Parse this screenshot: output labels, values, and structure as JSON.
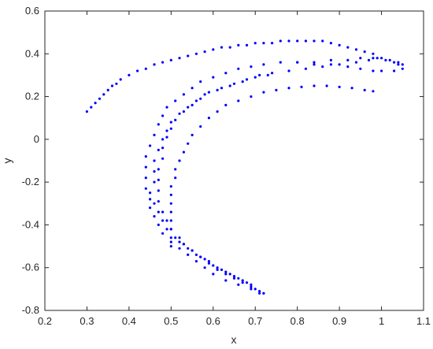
{
  "chart_data": {
    "type": "scatter",
    "title": "",
    "xlabel": "x",
    "ylabel": "y",
    "xlim": [
      0.2,
      1.1
    ],
    "ylim": [
      -0.8,
      0.6
    ],
    "xticks": [
      "0.2",
      "0.3",
      "0.4",
      "0.5",
      "0.6",
      "0.7",
      "0.8",
      "0.9",
      "1",
      "1.1"
    ],
    "yticks": [
      "-0.8",
      "-0.6",
      "-0.4",
      "-0.2",
      "0",
      "0.2",
      "0.4",
      "0.6"
    ],
    "grid": false,
    "legend": "none",
    "marker_color": "#0000ff",
    "series": [
      {
        "points": [
          [
            0.3,
            0.13
          ],
          [
            0.31,
            0.15
          ],
          [
            0.32,
            0.17
          ],
          [
            0.33,
            0.19
          ],
          [
            0.34,
            0.21
          ],
          [
            0.35,
            0.23
          ],
          [
            0.36,
            0.25
          ],
          [
            0.37,
            0.26
          ],
          [
            0.38,
            0.28
          ],
          [
            0.4,
            0.3
          ],
          [
            0.42,
            0.32
          ],
          [
            0.44,
            0.33
          ],
          [
            0.46,
            0.35
          ],
          [
            0.48,
            0.36
          ],
          [
            0.5,
            0.37
          ],
          [
            0.52,
            0.38
          ],
          [
            0.54,
            0.39
          ],
          [
            0.56,
            0.4
          ],
          [
            0.58,
            0.41
          ],
          [
            0.6,
            0.42
          ],
          [
            0.62,
            0.43
          ],
          [
            0.64,
            0.43
          ],
          [
            0.66,
            0.44
          ],
          [
            0.68,
            0.44
          ],
          [
            0.7,
            0.45
          ],
          [
            0.72,
            0.45
          ],
          [
            0.74,
            0.45
          ],
          [
            0.76,
            0.46
          ],
          [
            0.78,
            0.46
          ],
          [
            0.8,
            0.46
          ],
          [
            0.82,
            0.46
          ],
          [
            0.84,
            0.46
          ],
          [
            0.86,
            0.46
          ],
          [
            0.88,
            0.45
          ],
          [
            0.9,
            0.44
          ],
          [
            0.92,
            0.43
          ],
          [
            0.94,
            0.42
          ],
          [
            0.96,
            0.41
          ],
          [
            0.98,
            0.4
          ],
          [
            1.0,
            0.38
          ],
          [
            1.02,
            0.37
          ],
          [
            1.04,
            0.36
          ],
          [
            1.05,
            0.35
          ],
          [
            1.05,
            0.33
          ],
          [
            1.03,
            0.32
          ],
          [
            1.0,
            0.32
          ],
          [
            0.98,
            0.32
          ],
          [
            0.95,
            0.33
          ],
          [
            0.92,
            0.34
          ],
          [
            0.88,
            0.35
          ],
          [
            0.84,
            0.35
          ],
          [
            0.8,
            0.36
          ],
          [
            0.76,
            0.36
          ],
          [
            0.72,
            0.35
          ],
          [
            0.69,
            0.34
          ],
          [
            0.66,
            0.33
          ],
          [
            0.63,
            0.31
          ],
          [
            0.6,
            0.29
          ],
          [
            0.57,
            0.27
          ],
          [
            0.55,
            0.24
          ],
          [
            0.53,
            0.21
          ],
          [
            0.51,
            0.18
          ],
          [
            0.49,
            0.15
          ],
          [
            0.48,
            0.11
          ],
          [
            0.47,
            0.07
          ],
          [
            0.46,
            0.02
          ],
          [
            0.45,
            -0.03
          ],
          [
            0.44,
            -0.08
          ],
          [
            0.44,
            -0.13
          ],
          [
            0.44,
            -0.18
          ],
          [
            0.44,
            -0.23
          ],
          [
            0.45,
            -0.28
          ],
          [
            0.45,
            -0.32
          ],
          [
            0.46,
            -0.36
          ],
          [
            0.47,
            -0.4
          ],
          [
            0.48,
            -0.44
          ],
          [
            0.5,
            -0.48
          ],
          [
            0.52,
            -0.51
          ],
          [
            0.54,
            -0.54
          ],
          [
            0.56,
            -0.57
          ],
          [
            0.58,
            -0.6
          ],
          [
            0.6,
            -0.63
          ],
          [
            0.63,
            -0.66
          ],
          [
            0.66,
            -0.68
          ],
          [
            0.69,
            -0.7
          ],
          [
            0.71,
            -0.72
          ],
          [
            0.72,
            -0.72
          ],
          [
            0.71,
            -0.71
          ],
          [
            0.69,
            -0.69
          ],
          [
            0.67,
            -0.67
          ],
          [
            0.65,
            -0.65
          ],
          [
            0.63,
            -0.63
          ],
          [
            0.61,
            -0.61
          ],
          [
            0.59,
            -0.58
          ],
          [
            0.57,
            -0.55
          ],
          [
            0.55,
            -0.52
          ],
          [
            0.53,
            -0.49
          ],
          [
            0.52,
            -0.46
          ],
          [
            0.5,
            -0.42
          ],
          [
            0.49,
            -0.38
          ],
          [
            0.48,
            -0.34
          ],
          [
            0.47,
            -0.29
          ],
          [
            0.47,
            -0.24
          ],
          [
            0.47,
            -0.19
          ],
          [
            0.47,
            -0.14
          ],
          [
            0.48,
            -0.09
          ],
          [
            0.48,
            -0.04
          ],
          [
            0.49,
            0.01
          ],
          [
            0.5,
            0.05
          ],
          [
            0.51,
            0.09
          ],
          [
            0.53,
            0.13
          ],
          [
            0.55,
            0.16
          ],
          [
            0.57,
            0.19
          ],
          [
            0.59,
            0.22
          ],
          [
            0.62,
            0.24
          ],
          [
            0.65,
            0.26
          ],
          [
            0.68,
            0.28
          ],
          [
            0.71,
            0.3
          ],
          [
            0.74,
            0.31
          ],
          [
            0.78,
            0.32
          ],
          [
            0.82,
            0.33
          ],
          [
            0.86,
            0.34
          ],
          [
            0.9,
            0.35
          ],
          [
            0.94,
            0.36
          ],
          [
            0.97,
            0.37
          ],
          [
            0.99,
            0.38
          ],
          [
            1.01,
            0.37
          ],
          [
            1.03,
            0.36
          ],
          [
            1.04,
            0.35
          ],
          [
            0.98,
            0.38
          ],
          [
            0.95,
            0.38
          ],
          [
            0.92,
            0.37
          ],
          [
            0.88,
            0.37
          ],
          [
            0.84,
            0.36
          ],
          [
            0.8,
            0.36
          ],
          [
            0.5,
            -0.5
          ],
          [
            0.5,
            -0.46
          ],
          [
            0.5,
            -0.42
          ],
          [
            0.5,
            -0.38
          ],
          [
            0.5,
            -0.34
          ],
          [
            0.5,
            -0.3
          ],
          [
            0.5,
            -0.26
          ],
          [
            0.5,
            -0.22
          ],
          [
            0.51,
            -0.18
          ],
          [
            0.51,
            -0.14
          ],
          [
            0.52,
            -0.1
          ],
          [
            0.53,
            -0.06
          ],
          [
            0.54,
            -0.02
          ],
          [
            0.55,
            0.02
          ],
          [
            0.57,
            0.06
          ],
          [
            0.59,
            0.1
          ],
          [
            0.61,
            0.13
          ],
          [
            0.63,
            0.16
          ],
          [
            0.66,
            0.18
          ],
          [
            0.69,
            0.2
          ],
          [
            0.72,
            0.22
          ],
          [
            0.75,
            0.23
          ],
          [
            0.78,
            0.24
          ],
          [
            0.81,
            0.245
          ],
          [
            0.84,
            0.25
          ],
          [
            0.87,
            0.25
          ],
          [
            0.9,
            0.245
          ],
          [
            0.93,
            0.24
          ],
          [
            0.96,
            0.23
          ],
          [
            0.98,
            0.225
          ],
          [
            0.52,
            -0.48
          ],
          [
            0.54,
            -0.51
          ],
          [
            0.56,
            -0.54
          ],
          [
            0.58,
            -0.56
          ],
          [
            0.6,
            -0.59
          ],
          [
            0.62,
            -0.61
          ],
          [
            0.64,
            -0.63
          ],
          [
            0.66,
            -0.65
          ],
          [
            0.68,
            -0.67
          ],
          [
            0.7,
            -0.7
          ],
          [
            0.72,
            -0.72
          ],
          [
            0.46,
            -0.2
          ],
          [
            0.46,
            -0.15
          ],
          [
            0.46,
            -0.1
          ],
          [
            0.47,
            -0.05
          ],
          [
            0.48,
            0.0
          ],
          [
            0.49,
            0.04
          ],
          [
            0.5,
            0.08
          ],
          [
            0.52,
            0.12
          ],
          [
            0.54,
            0.15
          ],
          [
            0.56,
            0.18
          ],
          [
            0.58,
            0.21
          ],
          [
            0.61,
            0.23
          ],
          [
            0.64,
            0.25
          ],
          [
            0.67,
            0.27
          ],
          [
            0.7,
            0.29
          ],
          [
            0.73,
            0.3
          ],
          [
            0.45,
            -0.25
          ],
          [
            0.46,
            -0.3
          ],
          [
            0.47,
            -0.34
          ],
          [
            0.48,
            -0.38
          ],
          [
            0.49,
            -0.42
          ],
          [
            0.51,
            -0.46
          ],
          [
            0.53,
            -0.49
          ],
          [
            0.55,
            -0.52
          ],
          [
            0.57,
            -0.55
          ],
          [
            0.59,
            -0.57
          ],
          [
            0.61,
            -0.6
          ],
          [
            0.63,
            -0.62
          ],
          [
            0.65,
            -0.64
          ],
          [
            0.67,
            -0.66
          ],
          [
            0.69,
            -0.68
          ]
        ]
      }
    ]
  }
}
